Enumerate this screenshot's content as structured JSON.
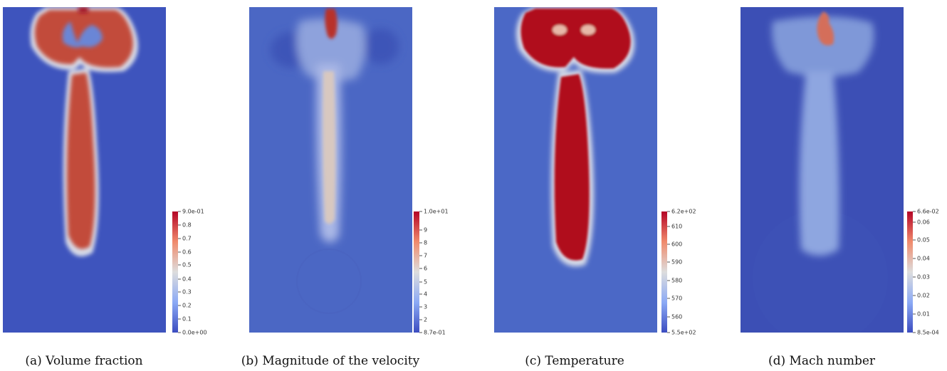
{
  "panels": [
    {
      "caption": "(a) Volume fraction",
      "colorbar": {
        "ticks": [
          "9.0e-01",
          "0.8",
          "0.7",
          "0.6",
          "0.5",
          "0.4",
          "0.3",
          "0.2",
          "0.1",
          "0.0e+00"
        ]
      }
    },
    {
      "caption": "(b) Magnitude of the velocity",
      "colorbar": {
        "ticks": [
          "1.0e+01",
          "9",
          "8",
          "7",
          "6",
          "5",
          "4",
          "3",
          "2",
          "8.7e-01"
        ]
      }
    },
    {
      "caption": "(c) Temperature",
      "colorbar": {
        "ticks": [
          "6.2e+02",
          "610",
          "600",
          "590",
          "580",
          "570",
          "560",
          "5.5e+02"
        ]
      }
    },
    {
      "caption": "(d) Mach number",
      "colorbar": {
        "ticks": [
          "6.6e-02",
          "0.06",
          "0.05",
          "0.04",
          "0.03",
          "0.02",
          "0.01",
          "8.5e-04"
        ]
      }
    }
  ],
  "colors": {
    "low": "#3b4cc0",
    "mid": "#dddddd",
    "high": "#b40426"
  }
}
